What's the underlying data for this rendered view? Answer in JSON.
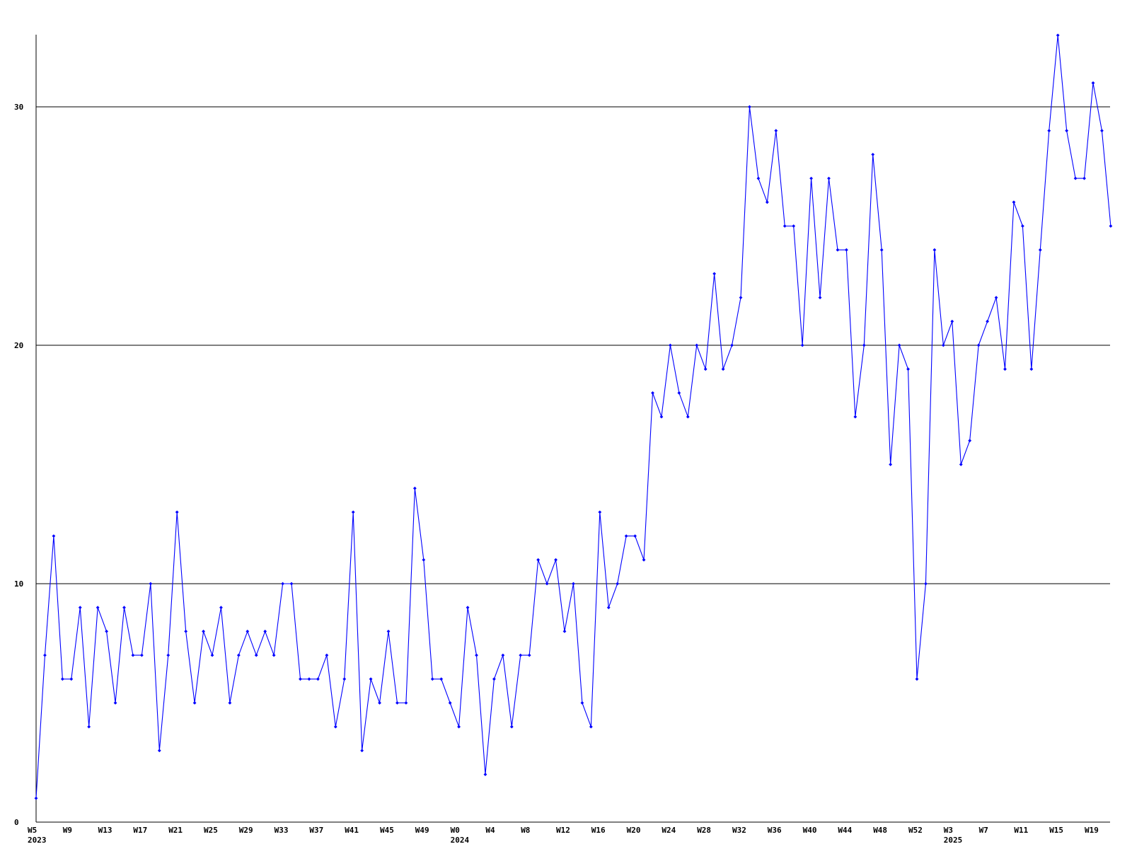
{
  "chart_data": {
    "type": "line",
    "title": "",
    "xlabel": "",
    "ylabel": "",
    "ylim": [
      0,
      30
    ],
    "grid": true,
    "legend": "none",
    "colors": {
      "line": "#0000ff",
      "marker": "#0000ff",
      "grid": "#000000",
      "axis": "#000000",
      "background": "#ffffff"
    },
    "y_ticks": [
      "0",
      "10",
      "20",
      "30"
    ],
    "x_ticks": [
      {
        "label": "W5",
        "year": "2023"
      },
      {
        "label": "W9",
        "year": ""
      },
      {
        "label": "W13",
        "year": ""
      },
      {
        "label": "W17",
        "year": ""
      },
      {
        "label": "W21",
        "year": ""
      },
      {
        "label": "W25",
        "year": ""
      },
      {
        "label": "W29",
        "year": ""
      },
      {
        "label": "W33",
        "year": ""
      },
      {
        "label": "W37",
        "year": ""
      },
      {
        "label": "W41",
        "year": ""
      },
      {
        "label": "W45",
        "year": ""
      },
      {
        "label": "W49",
        "year": ""
      },
      {
        "label": "W0",
        "year": "2024"
      },
      {
        "label": "W4",
        "year": ""
      },
      {
        "label": "W8",
        "year": ""
      },
      {
        "label": "W12",
        "year": ""
      },
      {
        "label": "W16",
        "year": ""
      },
      {
        "label": "W20",
        "year": ""
      },
      {
        "label": "W24",
        "year": ""
      },
      {
        "label": "W28",
        "year": ""
      },
      {
        "label": "W32",
        "year": ""
      },
      {
        "label": "W36",
        "year": ""
      },
      {
        "label": "W40",
        "year": ""
      },
      {
        "label": "W44",
        "year": ""
      },
      {
        "label": "W48",
        "year": ""
      },
      {
        "label": "W52",
        "year": ""
      },
      {
        "label": "W3",
        "year": "2025"
      },
      {
        "label": "W7",
        "year": ""
      },
      {
        "label": "W11",
        "year": ""
      },
      {
        "label": "W15",
        "year": ""
      },
      {
        "label": "W19",
        "year": ""
      }
    ],
    "series": [
      {
        "values": [
          1,
          7,
          12,
          6,
          6,
          9,
          4,
          9,
          8,
          5,
          9,
          7,
          7,
          10,
          3,
          7,
          13,
          8,
          5,
          8,
          7,
          9,
          5,
          7,
          8,
          7,
          8,
          7,
          10,
          10,
          6,
          6,
          6,
          7,
          4,
          6,
          13,
          3,
          6,
          5,
          8,
          5,
          5,
          14,
          11,
          6,
          6,
          5,
          4,
          9,
          7,
          2,
          6,
          7,
          4,
          7,
          7,
          11,
          10,
          11,
          8,
          10,
          5,
          4,
          13,
          9,
          10,
          12,
          12,
          11,
          18,
          17,
          20,
          18,
          17,
          20,
          19,
          23,
          19,
          20,
          22,
          30,
          27,
          26,
          29,
          25,
          25,
          20,
          27,
          22,
          27,
          24,
          24,
          17,
          20,
          28,
          24,
          15,
          20,
          19,
          6,
          10,
          24,
          20,
          21,
          15,
          16,
          20,
          21,
          22,
          19,
          26,
          25,
          19,
          24,
          29,
          33,
          29,
          27,
          27,
          31,
          29,
          25
        ]
      }
    ]
  }
}
